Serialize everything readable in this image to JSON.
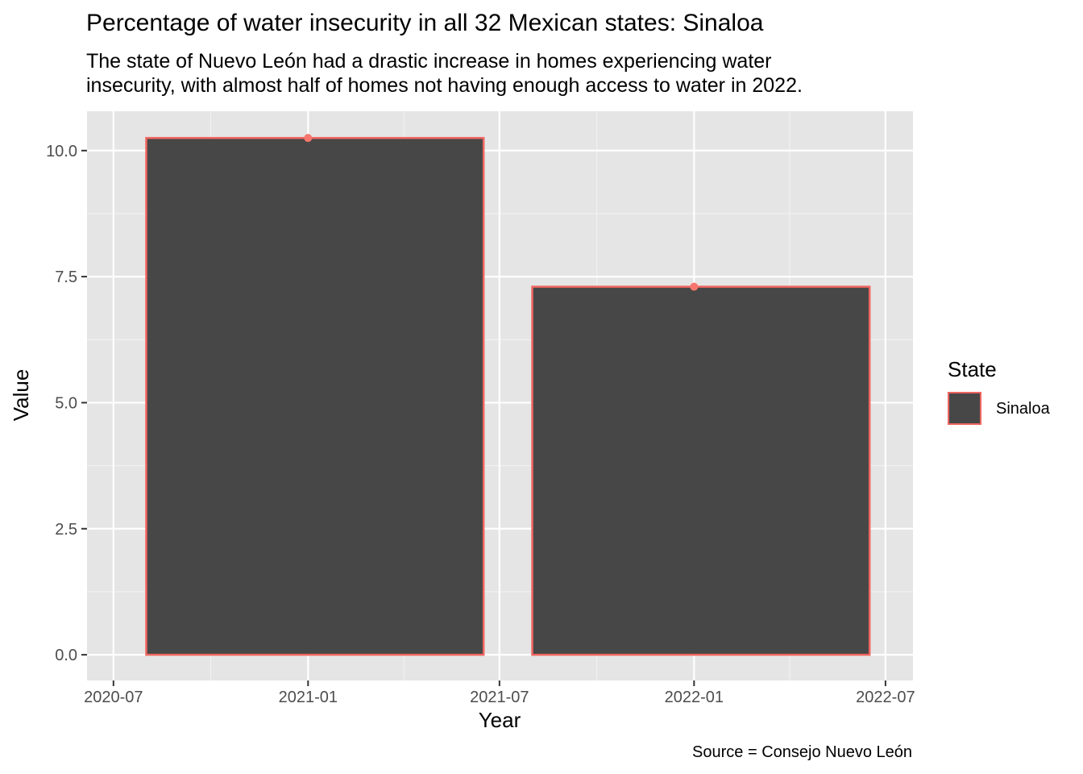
{
  "colors": {
    "panel_background": "#e5e5e5",
    "grid_major": "#ffffff",
    "grid_minor": "#f2f2f2",
    "bar_fill": "#474747",
    "bar_outline": "#f06560",
    "point": "#f8766d",
    "axis_text": "#4d4d4d"
  },
  "chart_data": {
    "type": "bar",
    "title": "Percentage of water insecurity in all 32 Mexican states: Sinaloa",
    "subtitle_lines": [
      "The state of Nuevo León had a drastic increase in homes experiencing water",
      "insecurity, with almost half of homes not having enough access to water in 2022."
    ],
    "caption": "Source = Consejo Nuevo León",
    "xlabel": "Year",
    "ylabel": "Value",
    "x_axis": "date",
    "xlim": [
      "2020-06-06",
      "2022-07-27"
    ],
    "x_ticks": [
      "2020-07-01",
      "2021-01-01",
      "2021-07-01",
      "2022-01-01",
      "2022-07-01"
    ],
    "x_tick_labels": [
      "2020-07",
      "2021-01",
      "2021-07",
      "2022-01",
      "2022-07"
    ],
    "ylim": [
      -0.51,
      10.78
    ],
    "y_ticks": [
      0,
      2.5,
      5,
      7.5,
      10
    ],
    "y_tick_labels": [
      "0.0",
      "2.5",
      "5.0",
      "7.5",
      "10.0"
    ],
    "grid": true,
    "legend_position": "right",
    "legend_title": "State",
    "series": [
      {
        "name": "Sinaloa",
        "x": [
          "2021-01-01",
          "2022-01-01"
        ],
        "values": [
          10.25,
          7.3
        ],
        "bar_start": [
          "2020-08-01",
          "2021-08-01"
        ],
        "bar_end": [
          "2021-06-16",
          "2022-06-16"
        ]
      }
    ]
  }
}
